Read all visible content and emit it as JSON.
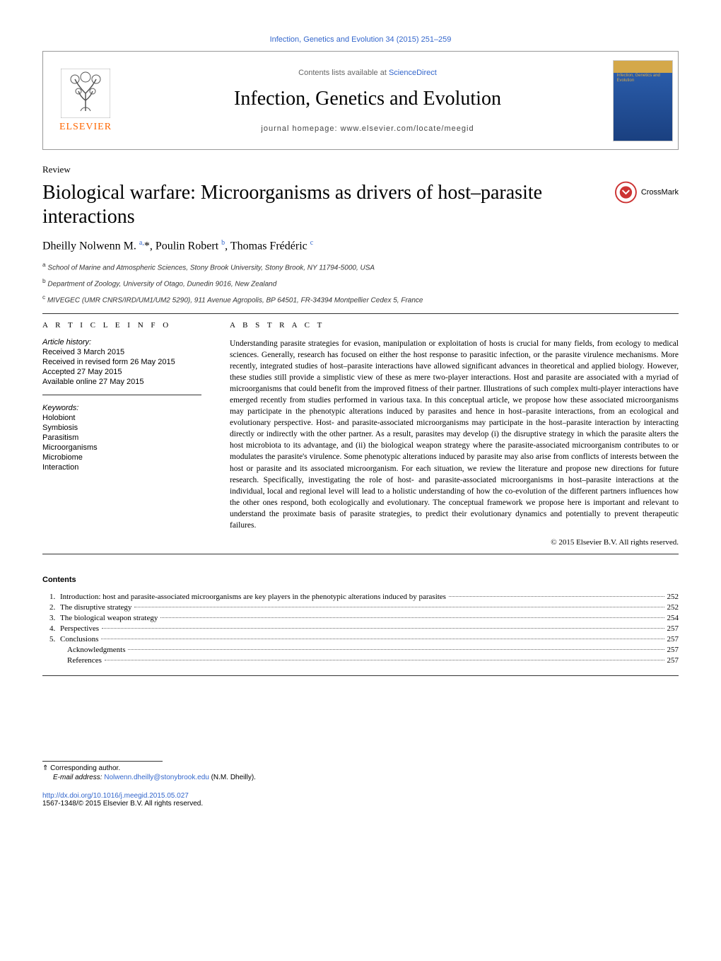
{
  "colors": {
    "link": "#3366cc",
    "elsevier_orange": "#ff6600",
    "text": "#000000",
    "muted": "#666666",
    "rule": "#333333",
    "cover_top": "#d4a84a",
    "cover_bottom_1": "#2a5caa",
    "cover_bottom_2": "#1a4080",
    "background": "#ffffff"
  },
  "journal_ref": "Infection, Genetics and Evolution 34 (2015) 251–259",
  "header": {
    "contents_lists": "Contents lists available at ",
    "sciencedirect": "ScienceDirect",
    "journal_name": "Infection, Genetics and Evolution",
    "homepage_label": "journal homepage: ",
    "homepage_url": "www.elsevier.com/locate/meegid",
    "elsevier_label": "ELSEVIER",
    "cover_text": "Infection, Genetics and Evolution"
  },
  "crossmark": "CrossMark",
  "article": {
    "type": "Review",
    "title": "Biological warfare: Microorganisms as drivers of host–parasite interactions",
    "authors_html": "Dheilly Nolwenn M. <sup>a,</sup>*, Poulin Robert <sup>b</sup>, Thomas Frédéric <sup>c</sup>",
    "affiliations": [
      "a School of Marine and Atmospheric Sciences, Stony Brook University, Stony Brook, NY 11794-5000, USA",
      "b Department of Zoology, University of Otago, Dunedin 9016, New Zealand",
      "c MIVEGEC (UMR CNRS/IRD/UM1/UM2 5290), 911 Avenue Agropolis, BP 64501, FR-34394 Montpellier Cedex 5, France"
    ]
  },
  "info": {
    "heading": "A R T I C L E    I N F O",
    "history_label": "Article history:",
    "history": [
      "Received 3 March 2015",
      "Received in revised form 26 May 2015",
      "Accepted 27 May 2015",
      "Available online 27 May 2015"
    ],
    "keywords_label": "Keywords:",
    "keywords": [
      "Holobiont",
      "Symbiosis",
      "Parasitism",
      "Microorganisms",
      "Microbiome",
      "Interaction"
    ]
  },
  "abstract": {
    "heading": "A B S T R A C T",
    "text": "Understanding parasite strategies for evasion, manipulation or exploitation of hosts is crucial for many fields, from ecology to medical sciences. Generally, research has focused on either the host response to parasitic infection, or the parasite virulence mechanisms. More recently, integrated studies of host–parasite interactions have allowed significant advances in theoretical and applied biology. However, these studies still provide a simplistic view of these as mere two-player interactions. Host and parasite are associated with a myriad of microorganisms that could benefit from the improved fitness of their partner. Illustrations of such complex multi-player interactions have emerged recently from studies performed in various taxa. In this conceptual article, we propose how these associated microorganisms may participate in the phenotypic alterations induced by parasites and hence in host–parasite interactions, from an ecological and evolutionary perspective. Host- and parasite-associated microorganisms may participate in the host–parasite interaction by interacting directly or indirectly with the other partner. As a result, parasites may develop (i) the disruptive strategy in which the parasite alters the host microbiota to its advantage, and (ii) the biological weapon strategy where the parasite-associated microorganism contributes to or modulates the parasite's virulence. Some phenotypic alterations induced by parasite may also arise from conflicts of interests between the host or parasite and its associated microorganism. For each situation, we review the literature and propose new directions for future research. Specifically, investigating the role of host- and parasite-associated microorganisms in host–parasite interactions at the individual, local and regional level will lead to a holistic understanding of how the co-evolution of the different partners influences how the other ones respond, both ecologically and evolutionary. The conceptual framework we propose here is important and relevant to understand the proximate basis of parasite strategies, to predict their evolutionary dynamics and potentially to prevent therapeutic failures.",
    "copyright": "© 2015 Elsevier B.V. All rights reserved."
  },
  "contents": {
    "heading": "Contents",
    "items": [
      {
        "num": "1.",
        "title": "Introduction: host and parasite-associated microorganisms are key players in the phenotypic alterations induced by parasites",
        "page": "252"
      },
      {
        "num": "2.",
        "title": "The disruptive strategy",
        "page": "252"
      },
      {
        "num": "3.",
        "title": "The biological weapon strategy",
        "page": "254"
      },
      {
        "num": "4.",
        "title": "Perspectives",
        "page": "257"
      },
      {
        "num": "5.",
        "title": "Conclusions",
        "page": "257"
      },
      {
        "num": "",
        "title": "Acknowledgments",
        "page": "257",
        "indent": true
      },
      {
        "num": "",
        "title": "References",
        "page": "257",
        "indent": true
      }
    ]
  },
  "footnote": {
    "corresponding": "⇑ Corresponding author.",
    "email_label": "E-mail address: ",
    "email": "Nolwenn.dheilly@stonybrook.edu",
    "email_suffix": " (N.M. Dheilly)."
  },
  "doi": {
    "url": "http://dx.doi.org/10.1016/j.meegid.2015.05.027",
    "issn_line": "1567-1348/© 2015 Elsevier B.V. All rights reserved."
  }
}
